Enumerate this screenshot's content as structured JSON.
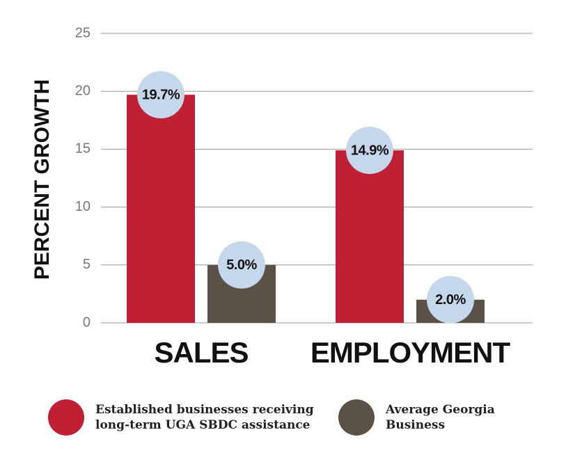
{
  "chart_data": {
    "type": "bar",
    "y_label": "PERCENT GROWTH",
    "categories": [
      "SALES",
      "EMPLOYMENT"
    ],
    "series": [
      {
        "name": "Established businesses receiving long-term UGA SBDC assistance",
        "color": "#bf2033",
        "values": [
          19.7,
          14.9
        ],
        "value_labels": [
          "19.7%",
          "14.9%"
        ]
      },
      {
        "name": "Average Georgia Business",
        "color": "#5a5147",
        "values": [
          5,
          2
        ],
        "value_labels": [
          "5.0%",
          "2.0%"
        ]
      }
    ],
    "ylim": [
      0,
      25
    ],
    "yticks": [
      0,
      5,
      10,
      15,
      20,
      25
    ],
    "grid": true,
    "legend": "bottom"
  }
}
